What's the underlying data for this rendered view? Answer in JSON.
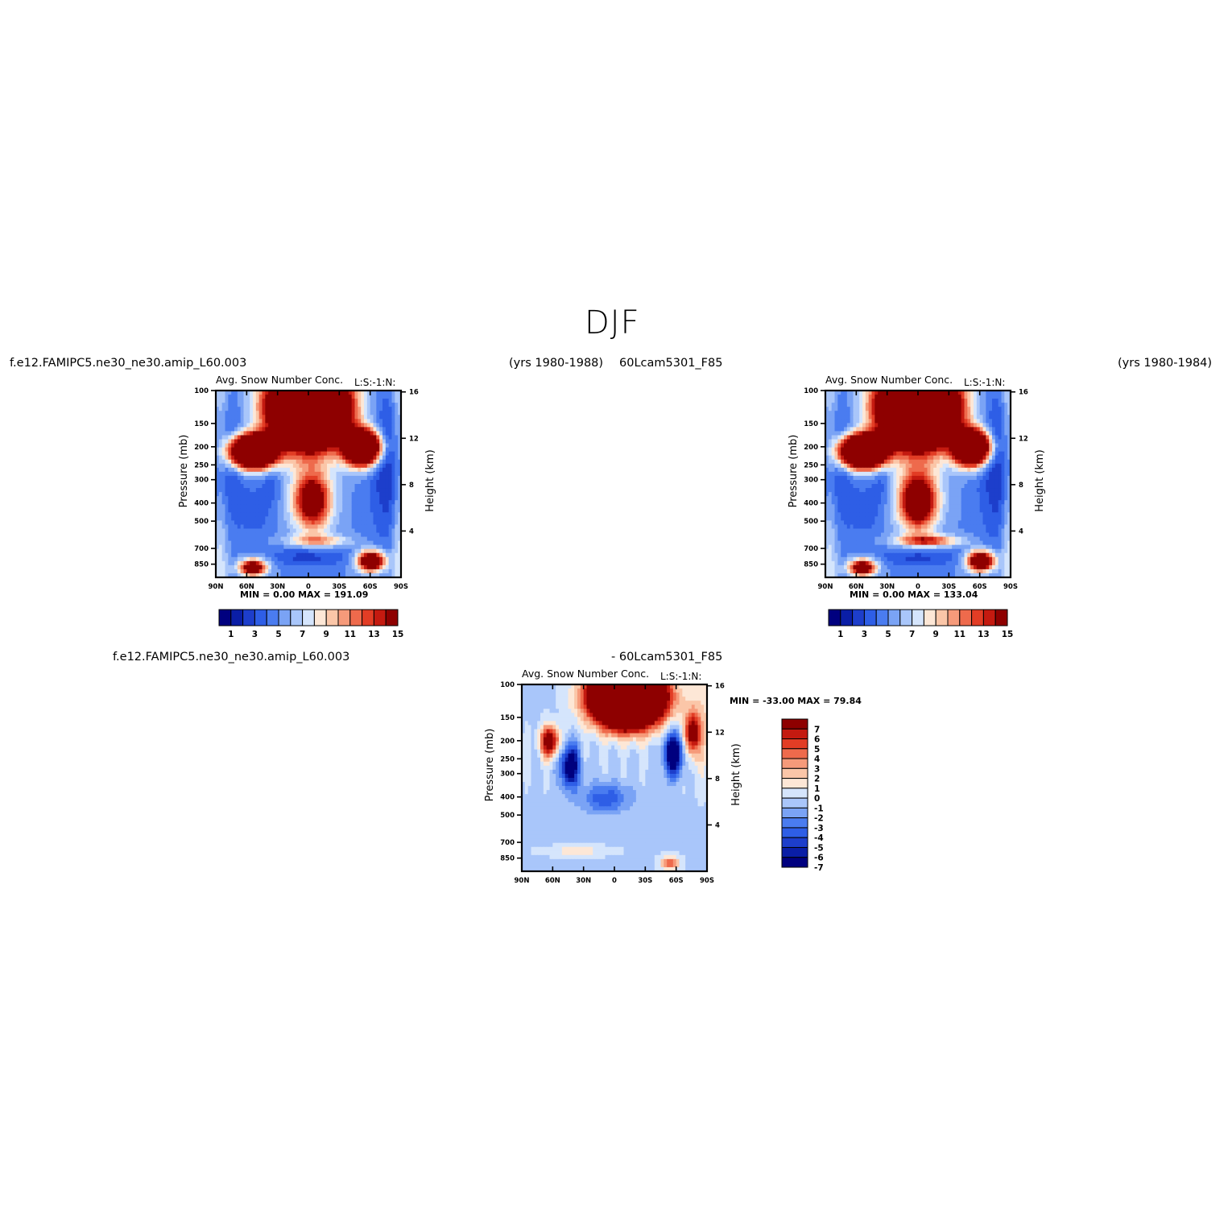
{
  "figure": {
    "title": "DJF",
    "header_left_case": "f.e12.FAMIPC5.ne30_ne30.amip_L60.003",
    "header_left_years": "(yrs 1980-1988)",
    "header_right_case": "60Lcam5301_F85",
    "header_right_years": "(yrs 1980-1984)",
    "diff_left_case": "f.e12.FAMIPC5.ne30_ne30.amip_L60.003",
    "diff_right_case": "- 60Lcam5301_F85"
  },
  "colors": {
    "abs_palette": [
      "#00007f",
      "#0a1ea6",
      "#1d3ecb",
      "#2e5ee6",
      "#4a7cf0",
      "#7aa3f5",
      "#a9c6fa",
      "#d5e5fc",
      "#fde7d6",
      "#fbc6a8",
      "#f69a7a",
      "#ee6a4c",
      "#e23d25",
      "#c41a10",
      "#8e0000"
    ],
    "diff_palette": [
      "#00007f",
      "#0a1ea6",
      "#1d3ecb",
      "#2e5ee6",
      "#4a7cf0",
      "#7aa3f5",
      "#a9c6fa",
      "#d5e5fc",
      "#fde7d6",
      "#fbc6a8",
      "#f69a7a",
      "#ee6a4c",
      "#e23d25",
      "#c41a10",
      "#8e0000"
    ]
  },
  "chart_data": [
    {
      "type": "heatmap",
      "title": "Avg. Snow Number Conc.",
      "subtitle": "L:S:-1:N:",
      "ylabel": "Pressure (mb)",
      "y2label": "Height (km)",
      "xticks": [
        "90N",
        "60N",
        "30N",
        "0",
        "30S",
        "60S",
        "90S"
      ],
      "yticks": [
        100,
        150,
        200,
        250,
        300,
        400,
        500,
        700,
        850
      ],
      "y2ticks": [
        16,
        12,
        8,
        4
      ],
      "ylog": true,
      "minmax": "MIN =    0.00   MAX = 191.09",
      "colorbar_labels": [
        "1",
        "3",
        "5",
        "7",
        "9",
        "11",
        "13",
        "15"
      ],
      "levels": [
        1,
        2,
        3,
        4,
        5,
        6,
        7,
        8,
        9,
        10,
        11,
        12,
        13,
        14,
        15
      ],
      "variant": "a"
    },
    {
      "type": "heatmap",
      "title": "Avg. Snow Number Conc.",
      "subtitle": "L:S:-1:N:",
      "ylabel": "Pressure (mb)",
      "y2label": "Height (km)",
      "xticks": [
        "90N",
        "60N",
        "30N",
        "0",
        "30S",
        "60S",
        "90S"
      ],
      "yticks": [
        100,
        150,
        200,
        250,
        300,
        400,
        500,
        700,
        850
      ],
      "y2ticks": [
        16,
        12,
        8,
        4
      ],
      "ylog": true,
      "minmax": "MIN =    0.00   MAX = 133.04",
      "colorbar_labels": [
        "1",
        "3",
        "5",
        "7",
        "9",
        "11",
        "13",
        "15"
      ],
      "levels": [
        1,
        2,
        3,
        4,
        5,
        6,
        7,
        8,
        9,
        10,
        11,
        12,
        13,
        14,
        15
      ],
      "variant": "b"
    },
    {
      "type": "heatmap",
      "title": "Avg. Snow Number Conc.",
      "subtitle": "L:S:-1:N:",
      "ylabel": "Pressure (mb)",
      "y2label": "Height (km)",
      "xticks": [
        "90N",
        "60N",
        "30N",
        "0",
        "30S",
        "60S",
        "90S"
      ],
      "yticks": [
        100,
        150,
        200,
        250,
        300,
        400,
        500,
        700,
        850
      ],
      "y2ticks": [
        16,
        12,
        8,
        4
      ],
      "ylog": true,
      "minmax": "MIN = -33.00   MAX =   79.84",
      "colorbar_labels": [
        "7",
        "6",
        "5",
        "4",
        "3",
        "2",
        "1",
        "0",
        "-1",
        "-2",
        "-3",
        "-4",
        "-5",
        "-6",
        "-7"
      ],
      "levels": [
        -7,
        -6,
        -5,
        -4,
        -3,
        -2,
        -1,
        0,
        1,
        2,
        3,
        4,
        5,
        6,
        7
      ],
      "variant": "diff"
    }
  ]
}
